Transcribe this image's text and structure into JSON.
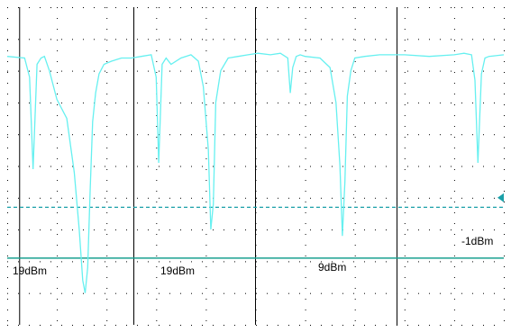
{
  "display": {
    "background": "#ffffff",
    "grid_color": "#000000",
    "trace_color": "#66f0f0",
    "level_line_color": "#1aa090",
    "reference_line_color": "#1aa0a8",
    "marker_color": "#1aa0a8"
  },
  "channel_labels": {
    "ch1": "19dBm",
    "ch2": "19dBm",
    "ch3": "9dBm",
    "ch4": "-1dBm"
  },
  "chart_data": {
    "type": "line",
    "xlim": [
      0,
      10
    ],
    "ylim": [
      -10,
      0
    ],
    "grid": true,
    "major_x_divisions": [
      0.25,
      2.55,
      5.0,
      7.85
    ],
    "series": [
      {
        "values_description": null,
        "x": [
          0.0,
          0.35,
          0.45,
          0.52,
          0.6,
          0.68,
          0.75,
          0.85,
          1.0,
          1.2,
          1.35,
          1.45,
          1.52,
          1.57,
          1.62,
          1.67,
          1.72,
          1.78,
          1.85,
          1.95,
          2.1,
          2.3,
          2.5,
          2.7,
          2.9,
          3.0,
          3.05,
          3.12,
          3.2,
          3.3,
          3.5,
          3.7,
          3.85,
          3.95,
          4.05,
          4.1,
          4.15,
          4.2,
          4.3,
          4.45,
          4.65,
          4.85,
          5.05,
          5.3,
          5.5,
          5.65,
          5.7,
          5.75,
          5.82,
          5.9,
          6.0,
          6.3,
          6.5,
          6.62,
          6.7,
          6.75,
          6.8,
          6.85,
          6.92,
          7.0,
          7.2,
          7.5,
          8.0,
          8.5,
          9.0,
          9.2,
          9.35,
          9.42,
          9.48,
          9.55,
          9.62,
          9.7,
          10.0
        ],
        "y": [
          -1.55,
          -1.6,
          -2.2,
          -5.1,
          -1.8,
          -1.6,
          -1.55,
          -2.0,
          -2.9,
          -3.5,
          -5.2,
          -7.0,
          -8.6,
          -9.0,
          -8.2,
          -5.8,
          -3.6,
          -2.7,
          -2.1,
          -1.8,
          -1.7,
          -1.6,
          -1.6,
          -1.55,
          -1.5,
          -2.2,
          -4.9,
          -1.8,
          -1.6,
          -1.8,
          -1.6,
          -1.5,
          -1.7,
          -2.5,
          -4.5,
          -7.0,
          -6.2,
          -3.0,
          -2.0,
          -1.6,
          -1.55,
          -1.5,
          -1.45,
          -1.5,
          -1.45,
          -1.6,
          -2.7,
          -1.9,
          -1.55,
          -1.5,
          -1.55,
          -1.6,
          -1.9,
          -3.0,
          -5.0,
          -7.2,
          -5.5,
          -2.8,
          -2.0,
          -1.6,
          -1.55,
          -1.5,
          -1.5,
          -1.55,
          -1.5,
          -1.45,
          -1.5,
          -2.3,
          -4.9,
          -2.1,
          -1.6,
          -1.55,
          -1.5
        ]
      }
    ],
    "dashed_reference_level": -6.3,
    "solid_reference_level": -7.9
  }
}
